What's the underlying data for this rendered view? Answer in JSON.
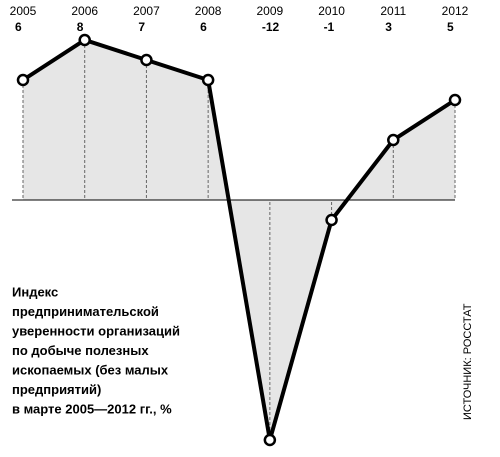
{
  "chart_data": {
    "type": "line",
    "title": [
      "Индекс",
      "предпринимательской",
      "уверенности организаций",
      "по добыче полезных",
      "ископаемых (без малых",
      "предприятий)",
      "в марте 2005—2012 гг., %"
    ],
    "source": "ИСТОЧНИК: РОССТАТ",
    "categories": [
      "2005",
      "2006",
      "2007",
      "2008",
      "2009",
      "2010",
      "2011",
      "2012"
    ],
    "values": [
      6,
      8,
      7,
      6,
      -12,
      -1,
      3,
      5
    ],
    "color": "#000000",
    "fill": "#e6e6e6"
  }
}
